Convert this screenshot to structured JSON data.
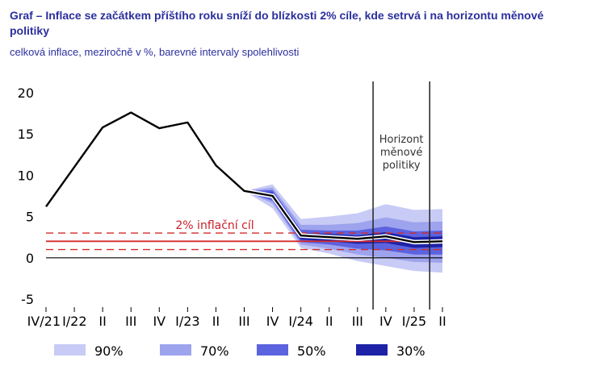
{
  "title": "Graf – Inflace se začátkem příštího roku sníží do blízkosti 2% cíle, kde setrvá i na horizontu měnové politiky",
  "subtitle": "celková inflace, meziročně v %, barevné intervaly spolehlivosti",
  "chart_data": {
    "type": "area",
    "categories": [
      "IV/21",
      "I/22",
      "II",
      "III",
      "IV",
      "I/23",
      "II",
      "III",
      "IV",
      "I/24",
      "II",
      "III",
      "IV",
      "I/25",
      "II"
    ],
    "ylim": [
      -5,
      20
    ],
    "yticks": [
      -5,
      0,
      5,
      10,
      15,
      20
    ],
    "grid": false,
    "series": [
      {
        "values": [
          6.2,
          11.0,
          15.8,
          17.6,
          15.7,
          16.4,
          11.2,
          8.1,
          7.5,
          2.7,
          2.5,
          2.3,
          2.6,
          1.9,
          2.0
        ]
      }
    ],
    "fan": {
      "start_index": 7,
      "bands": [
        {
          "name": "90%",
          "lower": [
            8.1,
            6.0,
            1.2,
            0.5,
            -0.4,
            -1.0,
            -1.6,
            -1.8
          ],
          "upper": [
            8.1,
            8.9,
            4.7,
            5.0,
            5.4,
            6.5,
            5.8,
            5.9
          ]
        },
        {
          "name": "70%",
          "lower": [
            8.1,
            6.6,
            1.6,
            1.1,
            0.4,
            0.0,
            -0.5,
            -0.6
          ],
          "upper": [
            8.1,
            8.5,
            4.0,
            4.0,
            4.2,
            4.9,
            4.3,
            4.4
          ]
        },
        {
          "name": "50%",
          "lower": [
            8.1,
            6.9,
            1.9,
            1.6,
            1.1,
            0.9,
            0.4,
            0.4
          ],
          "upper": [
            8.1,
            8.2,
            3.4,
            3.3,
            3.3,
            3.8,
            3.2,
            3.3
          ]
        },
        {
          "name": "30%",
          "lower": [
            8.1,
            7.2,
            2.2,
            2.0,
            1.7,
            1.8,
            1.2,
            1.3
          ],
          "upper": [
            8.1,
            7.9,
            3.0,
            2.9,
            2.7,
            3.1,
            2.5,
            2.6
          ]
        }
      ]
    },
    "target": {
      "label": "2% inflační cíl",
      "value": 2,
      "band": [
        1,
        3
      ]
    },
    "horizon": {
      "label_lines": [
        "Horizont",
        "měnové",
        "politiky"
      ],
      "x_from": 11.55,
      "x_to": 13.55
    },
    "legend": [
      "90%",
      "70%",
      "50%",
      "30%"
    ],
    "colors": {
      "band90": "#c8cbf5",
      "band70": "#9ea3ee",
      "band50": "#5c63df",
      "band30": "#1d22a6",
      "line": "#000000",
      "target": "#d42b2b",
      "title": "#2b2f9e"
    }
  }
}
